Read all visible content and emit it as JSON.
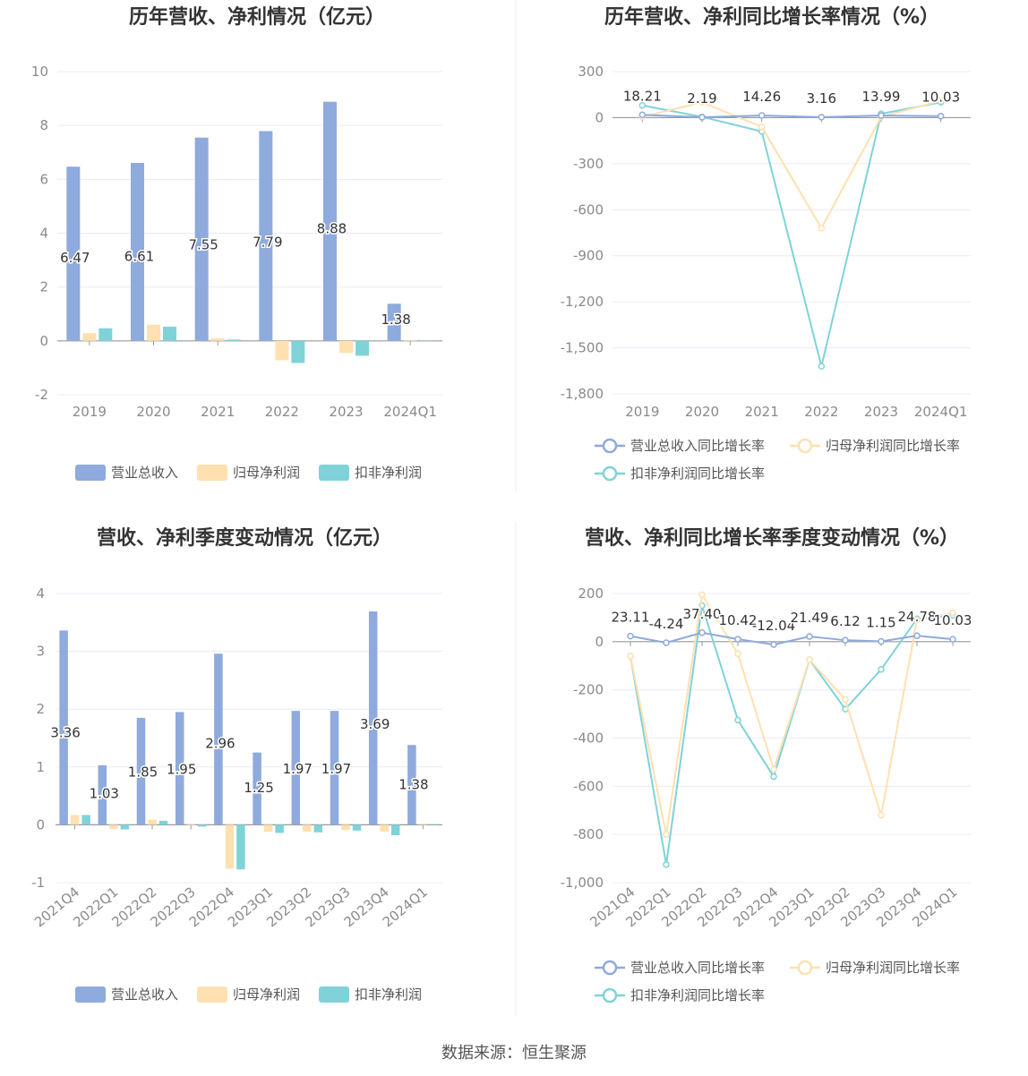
{
  "colors": {
    "revenue": "#8FAADC",
    "net_profit": "#FFE0B0",
    "deducted_profit": "#7FD3D8",
    "axis": "#9A9A9A",
    "grid": "#E8ECF4",
    "title": "#333333"
  },
  "footer": {
    "source": "数据来源：恒生聚源"
  },
  "chart_data": [
    {
      "type": "bar",
      "title": "历年营收、净利情况（亿元）",
      "categories": [
        "2019",
        "2020",
        "2021",
        "2022",
        "2023",
        "2024Q1"
      ],
      "series": [
        {
          "name": "营业总收入",
          "values": [
            6.47,
            6.61,
            7.55,
            7.79,
            8.88,
            1.38
          ]
        },
        {
          "name": "归母净利润",
          "values": [
            0.29,
            0.6,
            0.1,
            -0.72,
            -0.45,
            0.02
          ]
        },
        {
          "name": "扣非净利润",
          "values": [
            0.47,
            0.53,
            0.05,
            -0.82,
            -0.55,
            0.0
          ]
        }
      ],
      "data_labels": [
        "6.47",
        "6.61",
        "7.55",
        "7.79",
        "8.88",
        "1.38"
      ],
      "ylim": [
        -2,
        10
      ],
      "yticks": [
        "10",
        "8",
        "6",
        "4",
        "2",
        "0",
        "-2"
      ],
      "legend_position": "bottom",
      "grid": true
    },
    {
      "type": "line",
      "title": "历年营收、净利同比增长率情况（%）",
      "categories": [
        "2019",
        "2020",
        "2021",
        "2022",
        "2023",
        "2024Q1"
      ],
      "series": [
        {
          "name": "营业总收入同比增长率",
          "values": [
            18.21,
            2.19,
            14.26,
            3.16,
            13.99,
            10.03
          ]
        },
        {
          "name": "归母净利润同比增长率",
          "values": [
            5,
            100,
            -60,
            -720,
            5,
            110
          ]
        },
        {
          "name": "扣非净利润同比增长率",
          "values": [
            80,
            5,
            -90,
            -1620,
            25,
            100
          ]
        }
      ],
      "data_labels": [
        "18.21",
        "2.19",
        "14.26",
        "3.16",
        "13.99",
        "10.03"
      ],
      "ylim": [
        -1800,
        300
      ],
      "yticks": [
        "300",
        "0",
        "-300",
        "-600",
        "-900",
        "-1,200",
        "-1,500",
        "-1,800"
      ],
      "legend_position": "bottom",
      "grid": true
    },
    {
      "type": "bar",
      "title": "营收、净利季度变动情况（亿元）",
      "categories": [
        "2021Q4",
        "2022Q1",
        "2022Q2",
        "2022Q3",
        "2022Q4",
        "2023Q1",
        "2023Q2",
        "2023Q3",
        "2023Q4",
        "2024Q1"
      ],
      "series": [
        {
          "name": "营业总收入",
          "values": [
            3.36,
            1.03,
            1.85,
            1.95,
            2.96,
            1.25,
            1.97,
            1.97,
            3.69,
            1.38
          ]
        },
        {
          "name": "归母净利润",
          "values": [
            0.17,
            -0.07,
            0.09,
            -0.01,
            -0.76,
            -0.12,
            -0.12,
            -0.09,
            -0.12,
            0.02
          ]
        },
        {
          "name": "扣非净利润",
          "values": [
            0.17,
            -0.08,
            0.07,
            -0.03,
            -0.77,
            -0.14,
            -0.13,
            -0.1,
            -0.18,
            0.01
          ]
        }
      ],
      "data_labels": [
        "3.36",
        "1.03",
        "1.85",
        "1.95",
        "2.96",
        "1.25",
        "1.97",
        "1.97",
        "3.69",
        "1.38"
      ],
      "ylim": [
        -1,
        4
      ],
      "yticks": [
        "4",
        "3",
        "2",
        "1",
        "0",
        "-1"
      ],
      "legend_position": "bottom",
      "grid": true
    },
    {
      "type": "line",
      "title": "营收、净利同比增长率季度变动情况（%）",
      "categories": [
        "2021Q4",
        "2022Q1",
        "2022Q2",
        "2022Q3",
        "2022Q4",
        "2023Q1",
        "2023Q2",
        "2023Q3",
        "2023Q4",
        "2024Q1"
      ],
      "series": [
        {
          "name": "营业总收入同比增长率",
          "values": [
            23.11,
            -4.24,
            37.4,
            10.42,
            -12.04,
            21.49,
            6.12,
            1.15,
            24.78,
            10.03
          ]
        },
        {
          "name": "归母净利润同比增长率",
          "values": [
            -60,
            -800,
            195,
            -50,
            -530,
            -75,
            -240,
            -720,
            90,
            120
          ]
        },
        {
          "name": "扣非净利润同比增长率",
          "values": [
            -60,
            -925,
            150,
            -325,
            -560,
            -75,
            -280,
            -115,
            95,
            110
          ]
        }
      ],
      "data_labels": [
        "23.11",
        "-4.24",
        "37.40",
        "10.42",
        "-12.04",
        "21.49",
        "6.12",
        "1.15",
        "24.78",
        "10.03"
      ],
      "ylim": [
        -1000,
        200
      ],
      "yticks": [
        "200",
        "0",
        "-200",
        "-400",
        "-600",
        "-800",
        "-1,000"
      ],
      "legend_position": "bottom",
      "grid": true
    }
  ]
}
